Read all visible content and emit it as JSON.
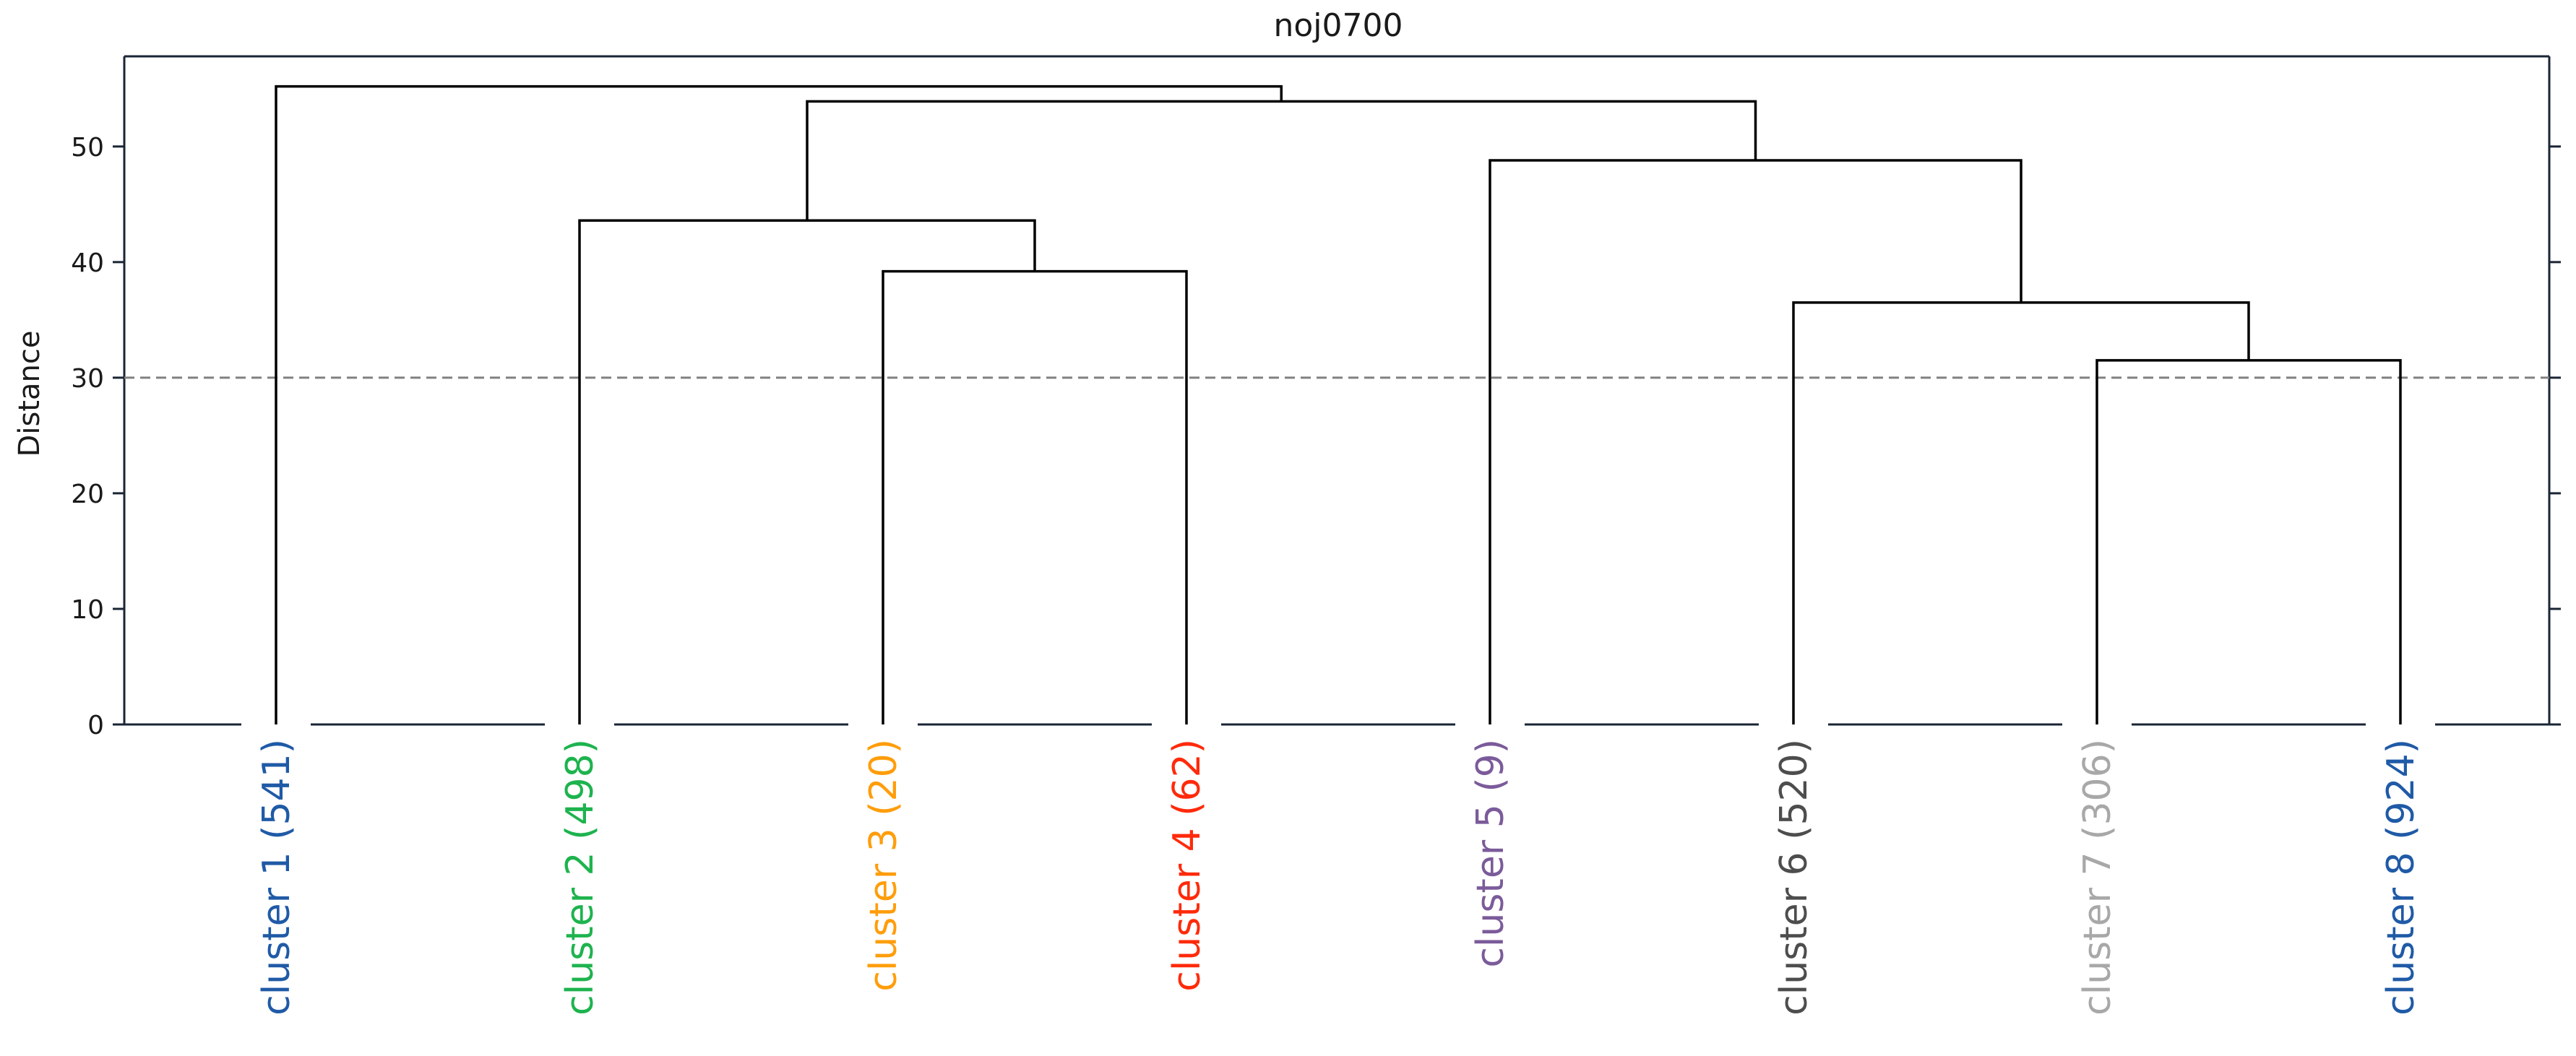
{
  "chart_data": {
    "type": "dendrogram",
    "title": "noj0700",
    "xlabel": "",
    "ylabel": "Distance",
    "ylim": [
      0,
      57.8
    ],
    "yticks": [
      0,
      10,
      20,
      30,
      40,
      50
    ],
    "threshold": 30,
    "threshold_style": "dashed",
    "threshold_color": "#808080",
    "grid": false,
    "leaves": [
      {
        "label": "cluster 1",
        "count": "(541)",
        "color": "#1f5aa6"
      },
      {
        "label": "cluster 2",
        "count": "(498)",
        "color": "#1db34e"
      },
      {
        "label": "cluster 3",
        "count": "(20)",
        "color": "#ff9d0a"
      },
      {
        "label": "cluster 4",
        "count": "(62)",
        "color": "#ff2a0a"
      },
      {
        "label": "cluster 5",
        "count": "(9)",
        "color": "#7b5b9a"
      },
      {
        "label": "cluster 6",
        "count": "(520)",
        "color": "#4d4d4d"
      },
      {
        "label": "cluster 7",
        "count": "(306)",
        "color": "#a8a8a8"
      },
      {
        "label": "cluster 8",
        "count": "(924)",
        "color": "#1f5aa6"
      }
    ],
    "merges": [
      {
        "a": "leaf:6",
        "b": "leaf:7",
        "height": 31.5
      },
      {
        "a": "leaf:5",
        "b": "merge:0",
        "height": 36.5
      },
      {
        "a": "leaf:2",
        "b": "leaf:3",
        "height": 39.2
      },
      {
        "a": "leaf:1",
        "b": "merge:2",
        "height": 43.6
      },
      {
        "a": "leaf:4",
        "b": "merge:1",
        "height": 48.8
      },
      {
        "a": "merge:3",
        "b": "merge:4",
        "height": 53.9
      },
      {
        "a": "leaf:0",
        "b": "merge:5",
        "height": 55.2
      }
    ]
  }
}
